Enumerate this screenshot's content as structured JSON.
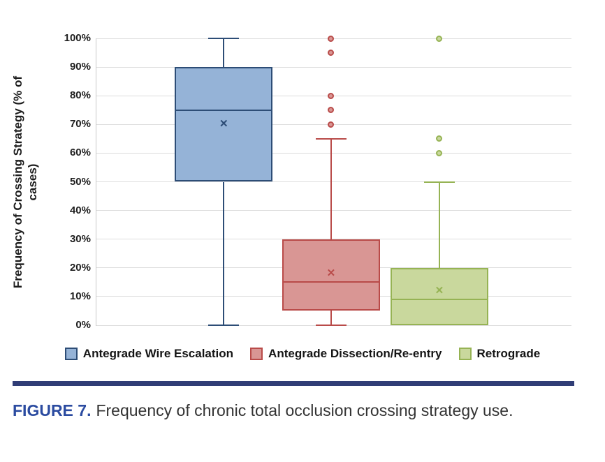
{
  "figure": {
    "caption": {
      "label": "FIGURE 7.",
      "text": "Frequency of chronic total occlusion crossing strategy use."
    }
  },
  "colors": {
    "separator_bar": "#303d76",
    "caption_label_blue": "#2b4ba0"
  },
  "chart_data": {
    "type": "boxplot",
    "title": "",
    "xlabel": "",
    "ylabel": "Frequency of Crossing Strategy (% of cases)",
    "ylabel_lines": [
      "Frequency of Crossing Strategy (% of",
      "cases)"
    ],
    "ylim": [
      0,
      100
    ],
    "ytick_values": [
      100,
      90,
      80,
      70,
      60,
      50,
      40,
      30,
      20,
      10,
      0
    ],
    "ytick_labels": [
      "100%",
      "90%",
      "80%",
      "70%",
      "60%",
      "50%",
      "40%",
      "30%",
      "20%",
      "10%",
      "0%"
    ],
    "grid": "horizontal-light",
    "legend_position": "bottom",
    "mean_marker_glyph": "✕",
    "series": [
      {
        "name": "Antegrade Wire Escalation",
        "fill": "#95b3d7",
        "stroke": "#2d4d76",
        "whisker_low": 0,
        "q1": 50,
        "median": 75,
        "q3": 90,
        "whisker_high": 100,
        "mean": 70,
        "outliers": []
      },
      {
        "name": "Antegrade Dissection/Re-entry",
        "fill": "#d99694",
        "stroke": "#b94b49",
        "whisker_low": 0,
        "q1": 5,
        "median": 15,
        "q3": 30,
        "whisker_high": 65,
        "mean": 18,
        "outliers": [
          70,
          75,
          80,
          95,
          100
        ]
      },
      {
        "name": "Retrograde",
        "fill": "#c9d89d",
        "stroke": "#96b354",
        "whisker_low": null,
        "q1": 0,
        "median": 9,
        "q3": 20,
        "whisker_high": 50,
        "mean": 12,
        "outliers": [
          60,
          65,
          100
        ]
      }
    ]
  }
}
